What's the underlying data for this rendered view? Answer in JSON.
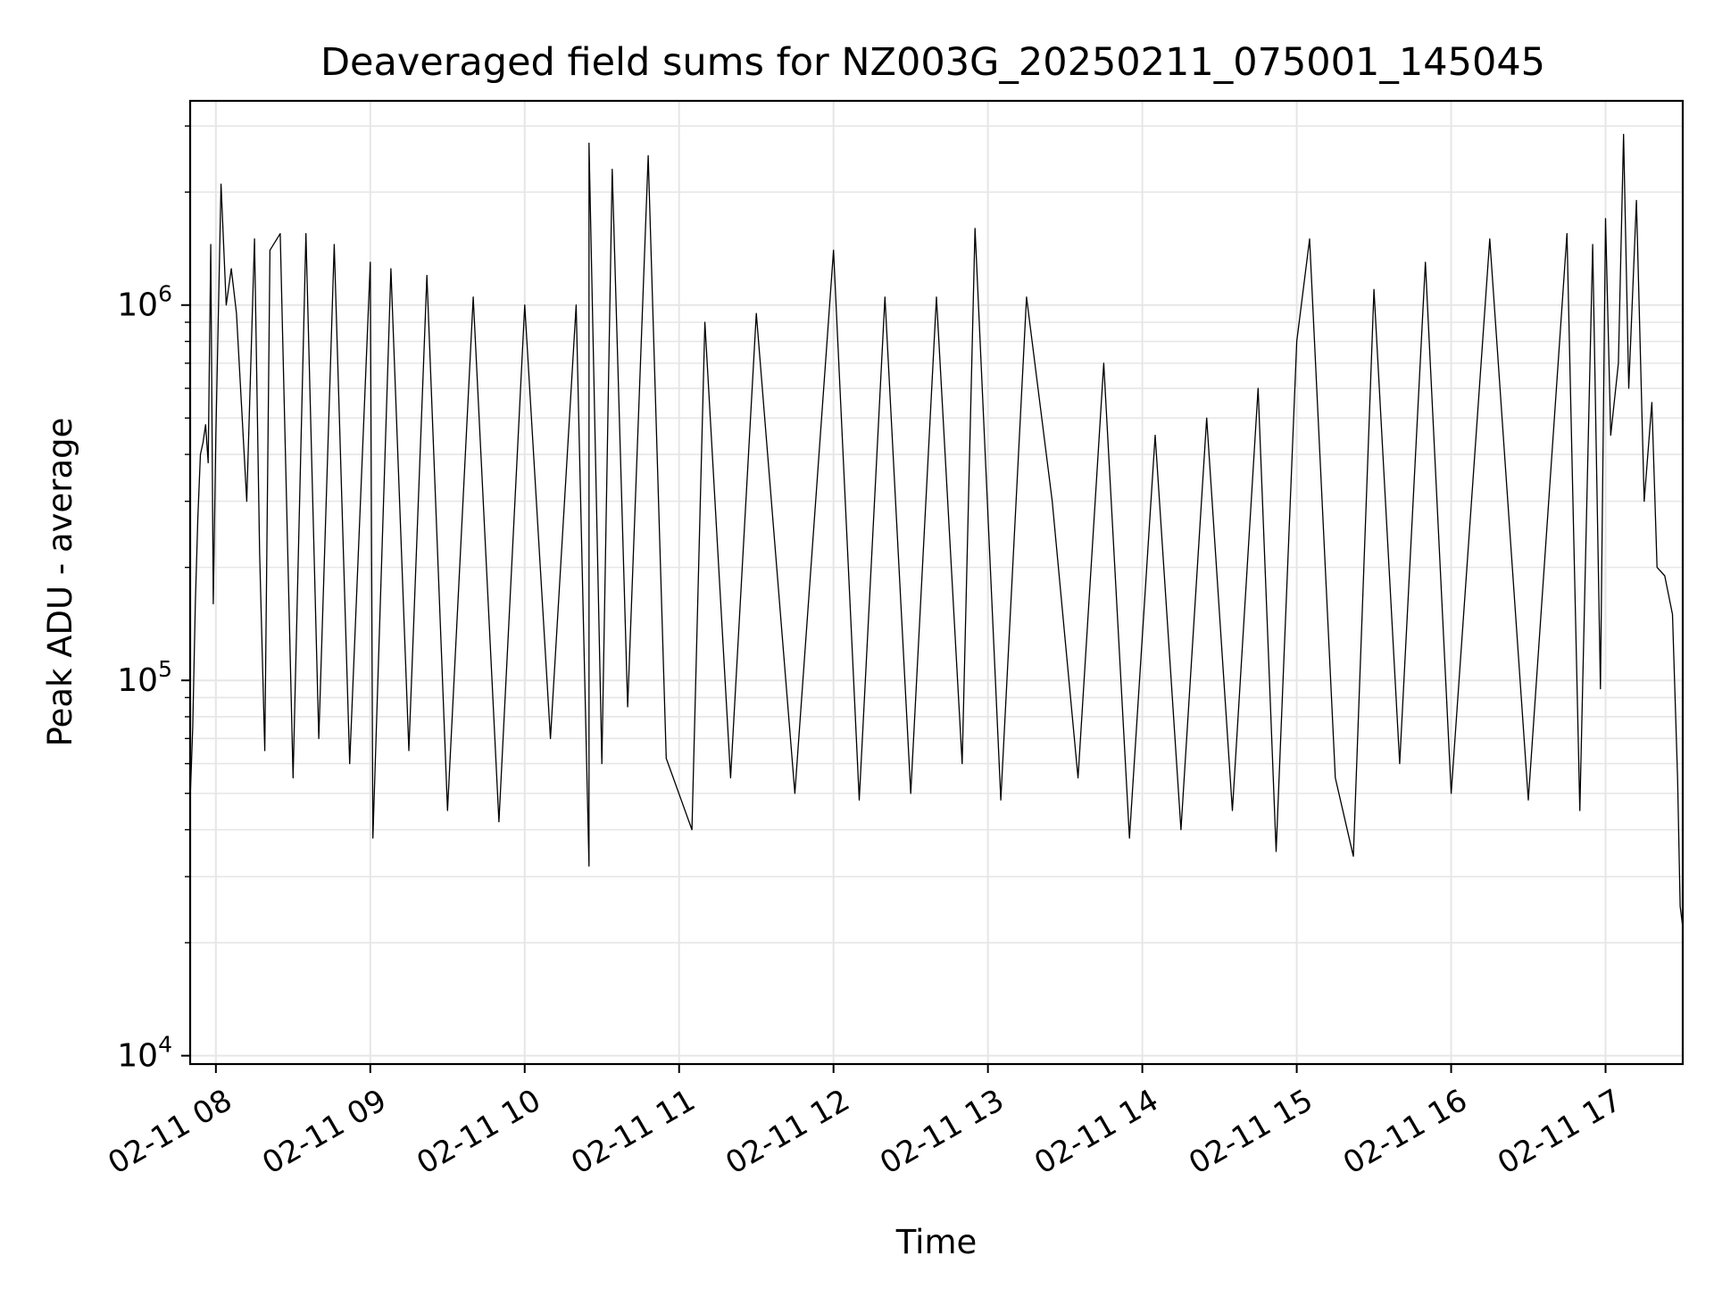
{
  "chart_data": {
    "type": "line",
    "title": "Deaveraged field sums for NZ003G_20250211_075001_145045",
    "xlabel": "Time",
    "ylabel": "Peak ADU - average",
    "yscale": "log",
    "xlim": [
      "2025-02-11 07:50",
      "2025-02-11 17:30"
    ],
    "ylim": [
      9500,
      3500000
    ],
    "grid": true,
    "legend": "none",
    "line_color": "#000000",
    "grid_color": "#e6e6e6",
    "x_ticks": [
      {
        "value": "2025-02-11 08:00",
        "label": "02-11 08"
      },
      {
        "value": "2025-02-11 09:00",
        "label": "02-11 09"
      },
      {
        "value": "2025-02-11 10:00",
        "label": "02-11 10"
      },
      {
        "value": "2025-02-11 11:00",
        "label": "02-11 11"
      },
      {
        "value": "2025-02-11 12:00",
        "label": "02-11 12"
      },
      {
        "value": "2025-02-11 13:00",
        "label": "02-11 13"
      },
      {
        "value": "2025-02-11 14:00",
        "label": "02-11 14"
      },
      {
        "value": "2025-02-11 15:00",
        "label": "02-11 15"
      },
      {
        "value": "2025-02-11 16:00",
        "label": "02-11 16"
      },
      {
        "value": "2025-02-11 17:00",
        "label": "02-11 17"
      }
    ],
    "y_ticks": [
      {
        "value": 10000,
        "base": "10",
        "exp": "4"
      },
      {
        "value": 100000,
        "base": "10",
        "exp": "5"
      },
      {
        "value": 1000000,
        "base": "10",
        "exp": "6"
      }
    ],
    "series": [
      {
        "points": [
          [
            "2025-02-11 07:50",
            48000
          ],
          [
            "2025-02-11 07:51",
            75000
          ],
          [
            "2025-02-11 07:52",
            160000
          ],
          [
            "2025-02-11 07:53",
            270000
          ],
          [
            "2025-02-11 07:54",
            400000
          ],
          [
            "2025-02-11 07:55",
            430000
          ],
          [
            "2025-02-11 07:56",
            480000
          ],
          [
            "2025-02-11 07:57",
            380000
          ],
          [
            "2025-02-11 07:58",
            1450000
          ],
          [
            "2025-02-11 07:59",
            160000
          ],
          [
            "2025-02-11 08:00",
            450000
          ],
          [
            "2025-02-11 08:02",
            2100000
          ],
          [
            "2025-02-11 08:04",
            1000000
          ],
          [
            "2025-02-11 08:06",
            1250000
          ],
          [
            "2025-02-11 08:08",
            950000
          ],
          [
            "2025-02-11 08:12",
            300000
          ],
          [
            "2025-02-11 08:15",
            1500000
          ],
          [
            "2025-02-11 08:17",
            220000
          ],
          [
            "2025-02-11 08:19",
            65000
          ],
          [
            "2025-02-11 08:21",
            1400000
          ],
          [
            "2025-02-11 08:25",
            1550000
          ],
          [
            "2025-02-11 08:30",
            55000
          ],
          [
            "2025-02-11 08:35",
            1550000
          ],
          [
            "2025-02-11 08:40",
            70000
          ],
          [
            "2025-02-11 08:46",
            1450000
          ],
          [
            "2025-02-11 08:52",
            60000
          ],
          [
            "2025-02-11 09:00",
            1300000
          ],
          [
            "2025-02-11 09:01",
            38000
          ],
          [
            "2025-02-11 09:08",
            1250000
          ],
          [
            "2025-02-11 09:15",
            65000
          ],
          [
            "2025-02-11 09:22",
            1200000
          ],
          [
            "2025-02-11 09:30",
            45000
          ],
          [
            "2025-02-11 09:40",
            1050000
          ],
          [
            "2025-02-11 09:50",
            42000
          ],
          [
            "2025-02-11 10:00",
            1000000
          ],
          [
            "2025-02-11 10:10",
            70000
          ],
          [
            "2025-02-11 10:20",
            1000000
          ],
          [
            "2025-02-11 10:25",
            32000
          ],
          [
            "2025-02-11 10:25",
            2700000
          ],
          [
            "2025-02-11 10:30",
            60000
          ],
          [
            "2025-02-11 10:34",
            2300000
          ],
          [
            "2025-02-11 10:40",
            85000
          ],
          [
            "2025-02-11 10:48",
            2500000
          ],
          [
            "2025-02-11 10:55",
            62000
          ],
          [
            "2025-02-11 11:05",
            40000
          ],
          [
            "2025-02-11 11:10",
            900000
          ],
          [
            "2025-02-11 11:20",
            55000
          ],
          [
            "2025-02-11 11:30",
            950000
          ],
          [
            "2025-02-11 11:45",
            50000
          ],
          [
            "2025-02-11 12:00",
            1400000
          ],
          [
            "2025-02-11 12:10",
            48000
          ],
          [
            "2025-02-11 12:20",
            1050000
          ],
          [
            "2025-02-11 12:30",
            50000
          ],
          [
            "2025-02-11 12:40",
            1050000
          ],
          [
            "2025-02-11 12:50",
            60000
          ],
          [
            "2025-02-11 12:55",
            1600000
          ],
          [
            "2025-02-11 13:05",
            48000
          ],
          [
            "2025-02-11 13:15",
            1050000
          ],
          [
            "2025-02-11 13:25",
            300000
          ],
          [
            "2025-02-11 13:35",
            55000
          ],
          [
            "2025-02-11 13:45",
            700000
          ],
          [
            "2025-02-11 13:55",
            38000
          ],
          [
            "2025-02-11 14:05",
            450000
          ],
          [
            "2025-02-11 14:15",
            40000
          ],
          [
            "2025-02-11 14:25",
            500000
          ],
          [
            "2025-02-11 14:35",
            45000
          ],
          [
            "2025-02-11 14:45",
            600000
          ],
          [
            "2025-02-11 14:52",
            35000
          ],
          [
            "2025-02-11 15:00",
            800000
          ],
          [
            "2025-02-11 15:05",
            1500000
          ],
          [
            "2025-02-11 15:15",
            55000
          ],
          [
            "2025-02-11 15:22",
            34000
          ],
          [
            "2025-02-11 15:30",
            1100000
          ],
          [
            "2025-02-11 15:40",
            60000
          ],
          [
            "2025-02-11 15:50",
            1300000
          ],
          [
            "2025-02-11 16:00",
            50000
          ],
          [
            "2025-02-11 16:15",
            1500000
          ],
          [
            "2025-02-11 16:30",
            48000
          ],
          [
            "2025-02-11 16:45",
            1550000
          ],
          [
            "2025-02-11 16:50",
            45000
          ],
          [
            "2025-02-11 16:55",
            1450000
          ],
          [
            "2025-02-11 16:58",
            95000
          ],
          [
            "2025-02-11 17:00",
            1700000
          ],
          [
            "2025-02-11 17:02",
            450000
          ],
          [
            "2025-02-11 17:05",
            700000
          ],
          [
            "2025-02-11 17:07",
            2850000
          ],
          [
            "2025-02-11 17:09",
            600000
          ],
          [
            "2025-02-11 17:12",
            1900000
          ],
          [
            "2025-02-11 17:15",
            300000
          ],
          [
            "2025-02-11 17:18",
            550000
          ],
          [
            "2025-02-11 17:20",
            200000
          ],
          [
            "2025-02-11 17:23",
            190000
          ],
          [
            "2025-02-11 17:26",
            150000
          ],
          [
            "2025-02-11 17:28",
            55000
          ],
          [
            "2025-02-11 17:29",
            25000
          ],
          [
            "2025-02-11 17:30",
            22000
          ]
        ]
      }
    ]
  }
}
